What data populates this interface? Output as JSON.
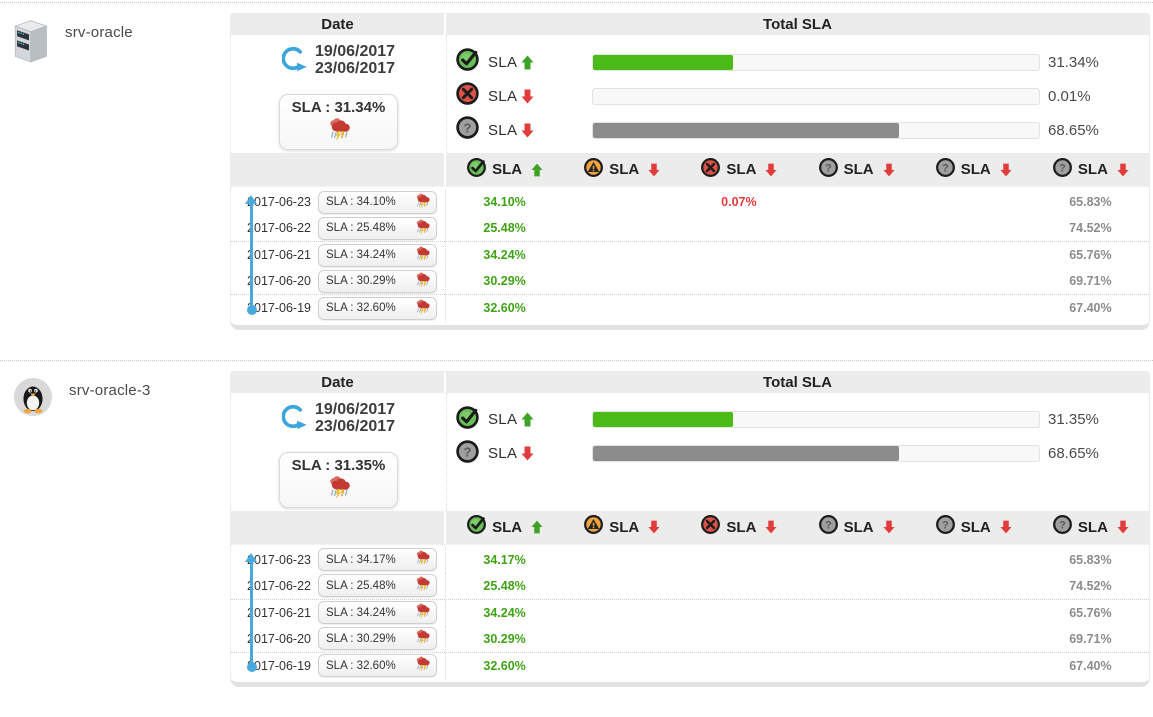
{
  "labels": {
    "date_header": "Date",
    "total_header": "Total SLA",
    "sla": "SLA"
  },
  "colors": {
    "bar_green": "#4cbb17",
    "bar_gray": "#8c8c8c",
    "band_gray": "#ececec",
    "text_green": "#3fa315",
    "text_red": "#e23b3b",
    "text_gray": "#8c8c8c",
    "blue_accent": "#49a9dd"
  },
  "column_headers": [
    {
      "icon": "check",
      "arrow": "up"
    },
    {
      "icon": "warning",
      "arrow": "down"
    },
    {
      "icon": "cross",
      "arrow": "down"
    },
    {
      "icon": "question",
      "arrow": "down"
    },
    {
      "icon": "question",
      "arrow": "down"
    },
    {
      "icon": "question",
      "arrow": "down"
    }
  ],
  "value_colors": [
    "green",
    "orange",
    "red",
    "gray",
    "gray",
    "gray"
  ],
  "hosts": [
    {
      "name": "srv-oracle",
      "icon": "server",
      "date_from": "19/06/2017",
      "date_to": "23/06/2017",
      "sla_badge": "SLA : 31.34%",
      "total_rows": [
        {
          "icon": "check",
          "arrow": "up",
          "pct": "31.34%",
          "value": 31.34,
          "fill": "green"
        },
        {
          "icon": "cross",
          "arrow": "down",
          "pct": "0.01%",
          "value": 0.01,
          "fill": "red"
        },
        {
          "icon": "question",
          "arrow": "down",
          "pct": "68.65%",
          "value": 68.65,
          "fill": "gray"
        }
      ],
      "daily": [
        {
          "date": "2017-06-23",
          "badge": "SLA : 34.10%",
          "values": [
            "34.10%",
            "",
            "0.07%",
            "",
            "",
            "65.83%"
          ]
        },
        {
          "date": "2017-06-22",
          "badge": "SLA : 25.48%",
          "values": [
            "25.48%",
            "",
            "",
            "",
            "",
            "74.52%"
          ]
        },
        {
          "date": "2017-06-21",
          "badge": "SLA : 34.24%",
          "values": [
            "34.24%",
            "",
            "",
            "",
            "",
            "65.76%"
          ]
        },
        {
          "date": "2017-06-20",
          "badge": "SLA : 30.29%",
          "values": [
            "30.29%",
            "",
            "",
            "",
            "",
            "69.71%"
          ]
        },
        {
          "date": "2017-06-19",
          "badge": "SLA : 32.60%",
          "values": [
            "32.60%",
            "",
            "",
            "",
            "",
            "67.40%"
          ]
        }
      ]
    },
    {
      "name": "srv-oracle-3",
      "icon": "linux",
      "date_from": "19/06/2017",
      "date_to": "23/06/2017",
      "sla_badge": "SLA : 31.35%",
      "total_rows": [
        {
          "icon": "check",
          "arrow": "up",
          "pct": "31.35%",
          "value": 31.35,
          "fill": "green"
        },
        {
          "icon": "question",
          "arrow": "down",
          "pct": "68.65%",
          "value": 68.65,
          "fill": "gray"
        }
      ],
      "daily": [
        {
          "date": "2017-06-23",
          "badge": "SLA : 34.17%",
          "values": [
            "34.17%",
            "",
            "",
            "",
            "",
            "65.83%"
          ]
        },
        {
          "date": "2017-06-22",
          "badge": "SLA : 25.48%",
          "values": [
            "25.48%",
            "",
            "",
            "",
            "",
            "74.52%"
          ]
        },
        {
          "date": "2017-06-21",
          "badge": "SLA : 34.24%",
          "values": [
            "34.24%",
            "",
            "",
            "",
            "",
            "65.76%"
          ]
        },
        {
          "date": "2017-06-20",
          "badge": "SLA : 30.29%",
          "values": [
            "30.29%",
            "",
            "",
            "",
            "",
            "69.71%"
          ]
        },
        {
          "date": "2017-06-19",
          "badge": "SLA : 32.60%",
          "values": [
            "32.60%",
            "",
            "",
            "",
            "",
            "67.40%"
          ]
        }
      ]
    }
  ]
}
